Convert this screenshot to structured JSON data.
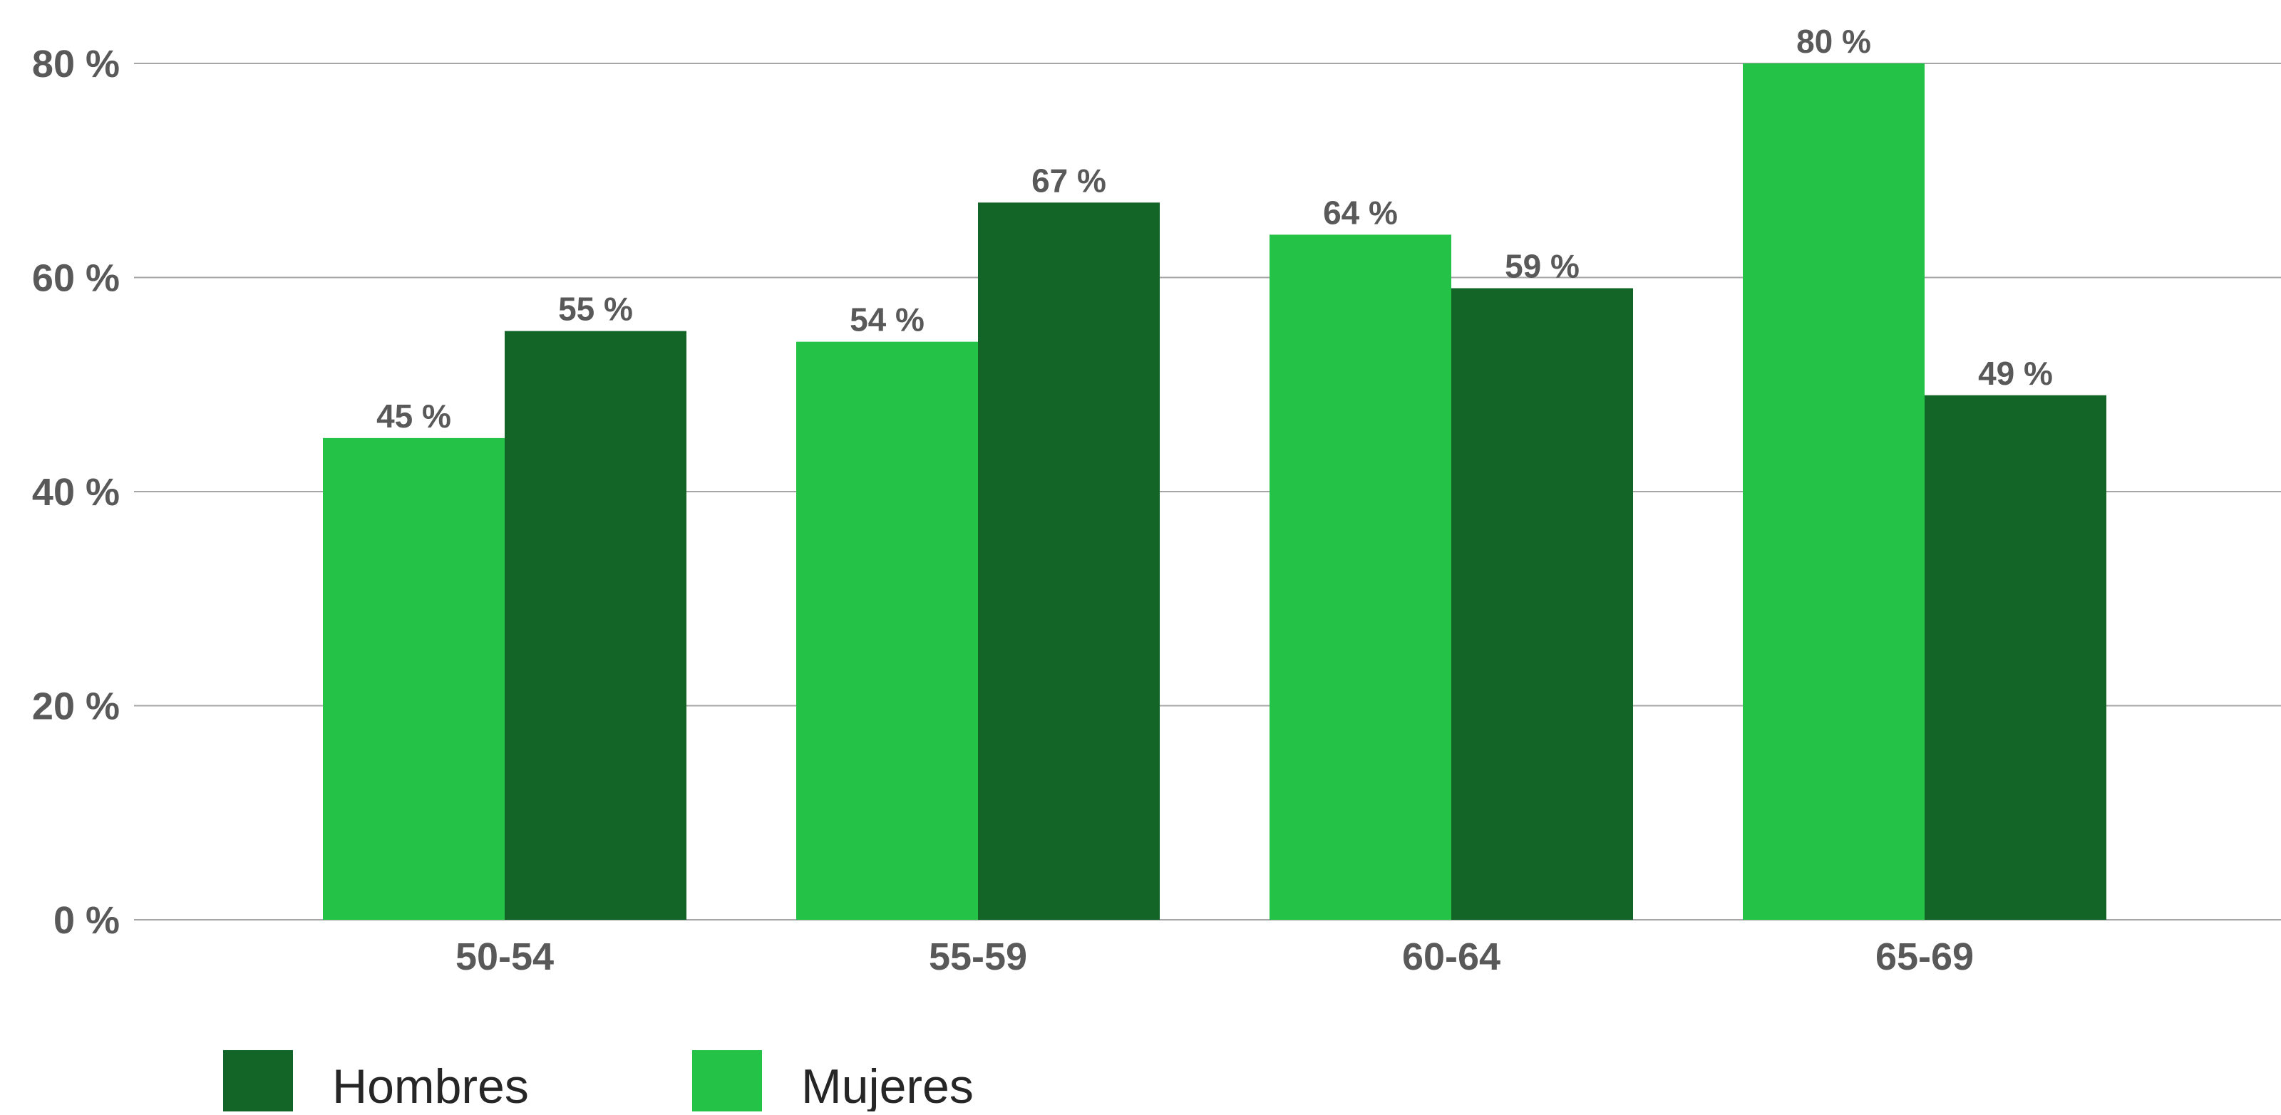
{
  "chart_data": {
    "type": "bar",
    "title": "",
    "xlabel": "",
    "ylabel": "",
    "categories": [
      "50-54",
      "55-59",
      "60-64",
      "65-69"
    ],
    "series": [
      {
        "name": "Mujeres",
        "color": "#25c248",
        "values": [
          45,
          54,
          64,
          80
        ]
      },
      {
        "name": "Hombres",
        "color": "#136427",
        "values": [
          55,
          67,
          59,
          49
        ]
      }
    ],
    "ylim": [
      0,
      80
    ],
    "yticks": [
      0,
      20,
      40,
      60,
      80
    ],
    "ytick_labels": [
      "0 %",
      "20 %",
      "40 %",
      "60 %",
      "80 %"
    ],
    "value_suffix": " %",
    "grid": true,
    "grid_color": "#a6a6a6",
    "legend_position": "bottom-left",
    "legend": [
      {
        "name": "Hombres",
        "color": "#136427"
      },
      {
        "name": "Mujeres",
        "color": "#25c248"
      }
    ]
  }
}
